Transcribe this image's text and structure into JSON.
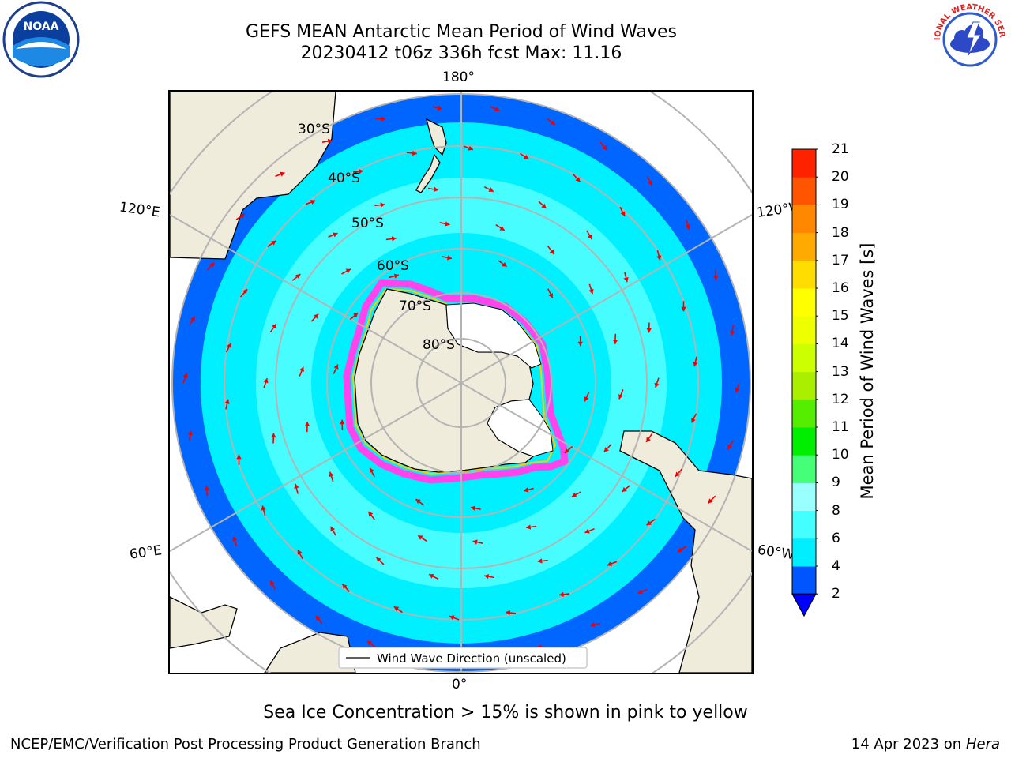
{
  "title_line1": "GEFS MEAN Antarctic Mean Period of Wind Waves",
  "title_line2": "20230412 t06z 336h fcst   Max: 11.16",
  "map": {
    "longitude_labels": {
      "top": "180°",
      "bottom": "0°",
      "upper_left": "120°E",
      "upper_right": "120°W",
      "lower_left": "60°E",
      "lower_right": "60°W"
    },
    "latitude_labels": [
      "30°S",
      "40°S",
      "50°S",
      "60°S",
      "70°S",
      "80°S"
    ],
    "legend_label": "Wind Wave Direction (unscaled)",
    "colors": {
      "land": "#efecdc",
      "ice_edge": "#ff44ee",
      "arrow": "#ee0000",
      "grid": "#b4b4b4"
    }
  },
  "colorbar": {
    "label": "Mean Period of Wind Waves [s]",
    "ticks": [
      "2",
      "4",
      "6",
      "8",
      "9",
      "10",
      "11",
      "12",
      "13",
      "14",
      "15",
      "16",
      "17",
      "18",
      "19",
      "20",
      "21"
    ],
    "colors": [
      "#0055ff",
      "#00eeff",
      "#44ffff",
      "#99ffff",
      "#44ff77",
      "#00ee00",
      "#55ee00",
      "#aaee00",
      "#ccff00",
      "#eeff00",
      "#ffff00",
      "#ffdd00",
      "#ffaa00",
      "#ff8800",
      "#ff5500",
      "#ff2200"
    ],
    "under_color": "#0000ff"
  },
  "subtitle": "Sea Ice Concentration > 15% is shown in pink to yellow",
  "footer_left": "NCEP/EMC/Verification Post Processing Product Generation Branch",
  "footer_date": "14 Apr 2023 on",
  "footer_machine": "Hera",
  "logos": {
    "left": "NOAA",
    "right": "NATIONAL WEATHER SERVICE"
  }
}
